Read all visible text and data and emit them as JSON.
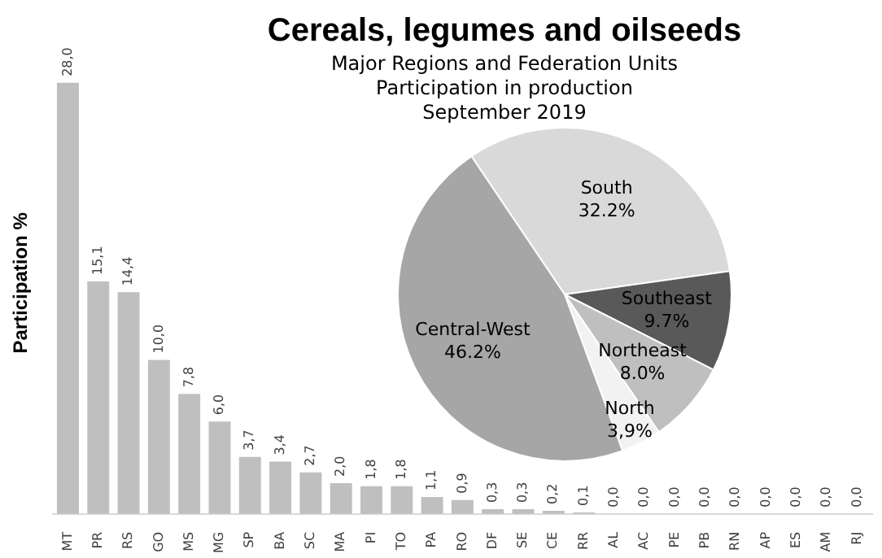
{
  "chart_data": [
    {
      "type": "bar",
      "title": "Cereals, legumes and oilseeds",
      "subtitle": "Major Regions and Federation Units\nParticipation in production\nSeptember 2019",
      "ylabel": "Participation %",
      "categories": [
        "MT",
        "PR",
        "RS",
        "GO",
        "MS",
        "MG",
        "SP",
        "BA",
        "SC",
        "MA",
        "PI",
        "TO",
        "PA",
        "RO",
        "DF",
        "SE",
        "CE",
        "RR",
        "AL",
        "AC",
        "PE",
        "PB",
        "RN",
        "AP",
        "ES",
        "AM",
        "RJ"
      ],
      "values": [
        28.0,
        15.1,
        14.4,
        10.0,
        7.8,
        6.0,
        3.7,
        3.4,
        2.7,
        2.0,
        1.8,
        1.8,
        1.1,
        0.9,
        0.3,
        0.3,
        0.2,
        0.1,
        0.0,
        0.0,
        0.0,
        0.0,
        0.0,
        0.0,
        0.0,
        0.0,
        0.0
      ],
      "value_labels": [
        "28,0",
        "15,1",
        "14,4",
        "10,0",
        "7,8",
        "6,0",
        "3,7",
        "3,4",
        "2,7",
        "2,0",
        "1,8",
        "1,8",
        "1,1",
        "0,9",
        "0,3",
        "0,3",
        "0,2",
        "0,1",
        "0,0",
        "0,0",
        "0,0",
        "0,0",
        "0,0",
        "0,0",
        "0,0",
        "0,0",
        "0,0"
      ],
      "color": "#bfbfbf",
      "tick_labels": "x",
      "grid": false,
      "legend": false
    },
    {
      "type": "pie",
      "categories": [
        "South",
        "Southeast",
        "Northeast",
        "North",
        "Central-West"
      ],
      "values": [
        32.2,
        9.7,
        8.0,
        3.9,
        46.2
      ],
      "value_labels": [
        "32.2%",
        "9.7%",
        "8.0%",
        "3,9%",
        "46.2%"
      ],
      "colors": [
        "#d9d9d9",
        "#595959",
        "#bfbfbf",
        "#f2f2f2",
        "#a6a6a6"
      ],
      "legend": false
    }
  ]
}
